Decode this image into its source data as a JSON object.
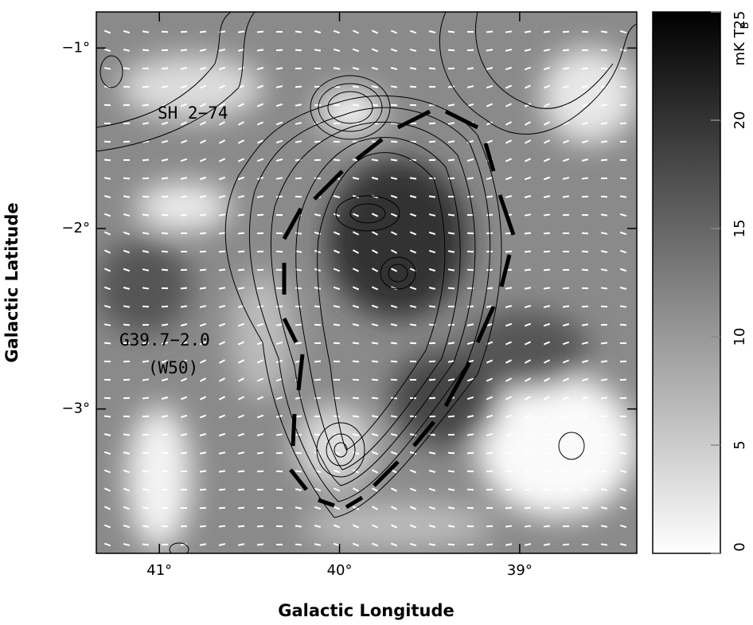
{
  "chart_data": {
    "type": "map",
    "x_label": "Galactic Longitude",
    "y_label": "Galactic Latitude",
    "xlim": [
      41.35,
      38.35
    ],
    "ylim": [
      -3.8,
      -0.8
    ],
    "xticks": [
      {
        "value": 41,
        "label": "41°"
      },
      {
        "value": 40,
        "label": "40°"
      },
      {
        "value": 39,
        "label": "39°"
      }
    ],
    "yticks": [
      {
        "value": -1,
        "label": "−1°"
      },
      {
        "value": -2,
        "label": "−2°"
      },
      {
        "value": -3,
        "label": "−3°"
      }
    ],
    "colorbar": {
      "lim": [
        0,
        25
      ],
      "ticks": [
        0,
        5,
        10,
        15,
        20,
        25
      ],
      "label": "mK T",
      "label_subscript": "B"
    },
    "annotations": [
      "SH 2−74",
      "G39.7−2.0",
      "(W50)"
    ]
  }
}
